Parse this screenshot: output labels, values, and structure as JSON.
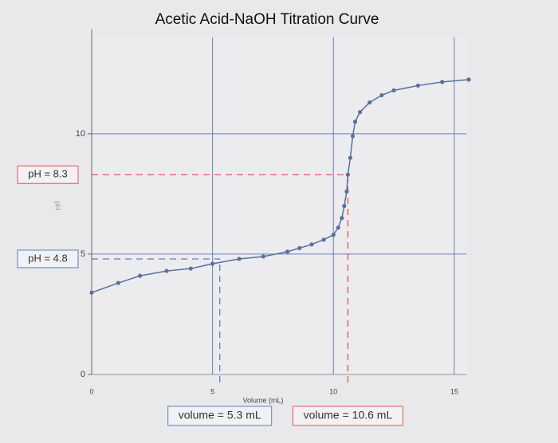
{
  "chart_data": {
    "type": "line",
    "title": "Acetic Acid-NaOH Titration Curve",
    "x_label": "Volume (mL)",
    "y_label": "pH",
    "xlim": [
      0,
      15.5
    ],
    "ylim": [
      0,
      14
    ],
    "xticks": [
      0,
      5,
      10,
      15
    ],
    "yticks": [
      0,
      5,
      10
    ],
    "grid": true,
    "series": [
      {
        "color": "#5b6f9e",
        "x": [
          0,
          1.1,
          2.0,
          3.1,
          4.1,
          5.0,
          6.1,
          7.1,
          8.1,
          8.6,
          9.1,
          9.6,
          10.0,
          10.2,
          10.35,
          10.45,
          10.55,
          10.6,
          10.7,
          10.8,
          10.9,
          11.1,
          11.5,
          12.0,
          12.5,
          13.5,
          14.5,
          15.6
        ],
        "values": [
          3.4,
          3.8,
          4.1,
          4.3,
          4.4,
          4.6,
          4.8,
          4.9,
          5.1,
          5.25,
          5.4,
          5.6,
          5.8,
          6.1,
          6.5,
          7.0,
          7.6,
          8.3,
          9.0,
          9.9,
          10.5,
          10.9,
          11.3,
          11.6,
          11.8,
          12.0,
          12.15,
          12.25
        ]
      }
    ],
    "reference_lines": [
      {
        "label": "pH = 8.3",
        "axis": "y",
        "value": 8.3,
        "color": "#e05555"
      },
      {
        "label": "pH = 4.8",
        "axis": "y",
        "value": 4.8,
        "color": "#5b7fc0"
      },
      {
        "label": "volume = 5.3 mL",
        "axis": "x",
        "value": 5.3,
        "color": "#5b7fc0"
      },
      {
        "label": "volume = 10.6 mL",
        "axis": "x",
        "value": 10.6,
        "color": "#e05555"
      }
    ]
  }
}
